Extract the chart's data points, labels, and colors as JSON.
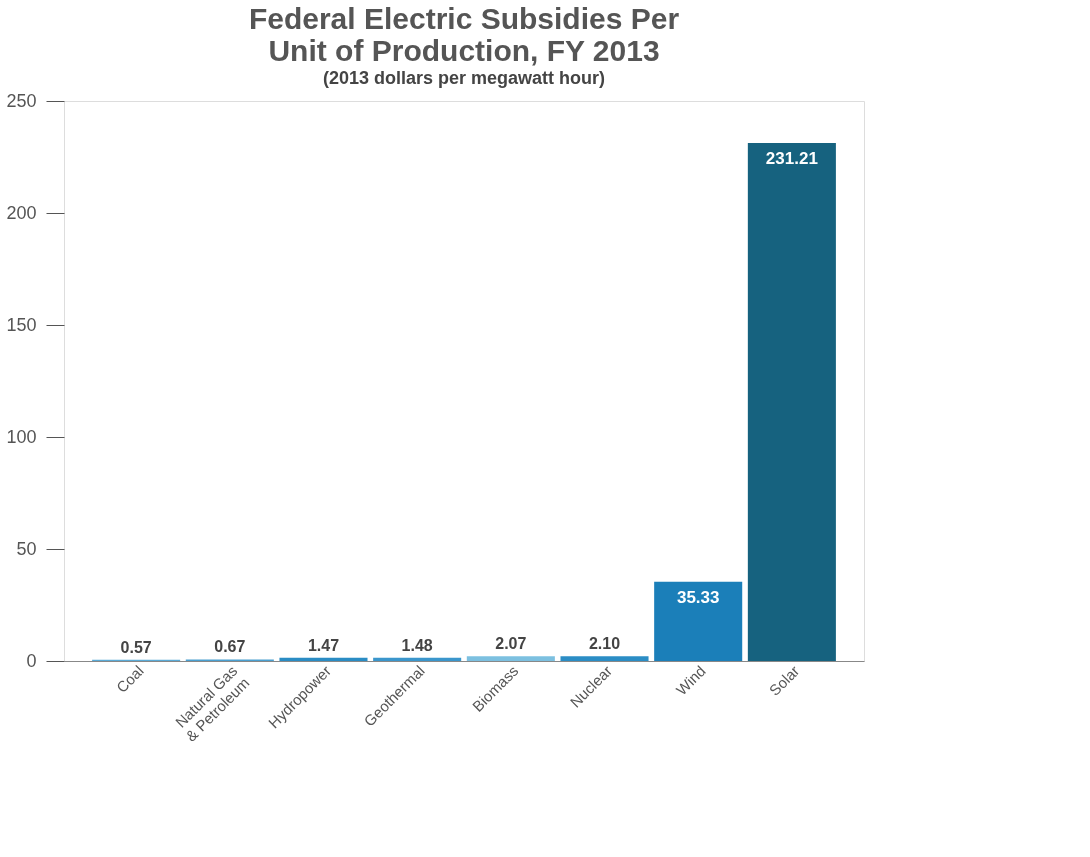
{
  "chart_data": {
    "type": "bar",
    "title": "Federal Electric Subsidies Per Unit of Production, FY 2013",
    "subtitle": "(2013 dollars per megawatt hour)",
    "categories": [
      "Coal",
      "Natural Gas\n& Petroleum",
      "Hydropower",
      "Geothermal",
      "Biomass",
      "Nuclear",
      "Wind",
      "Solar"
    ],
    "values": [
      0.57,
      0.67,
      1.47,
      1.48,
      2.07,
      2.1,
      35.33,
      231.21
    ],
    "value_labels": [
      "0.57",
      "0.67",
      "1.47",
      "1.48",
      "2.07",
      "2.10",
      "35.33",
      "231.21"
    ],
    "colors": [
      "#5aaad6",
      "#4a9fd0",
      "#2a8cc4",
      "#3a96cc",
      "#7cc0e0",
      "#2b8dc5",
      "#1b7fb9",
      "#16627f"
    ],
    "ylim": [
      0,
      250
    ],
    "yticks": [
      0,
      50,
      100,
      150,
      200,
      250
    ],
    "grid": false
  }
}
